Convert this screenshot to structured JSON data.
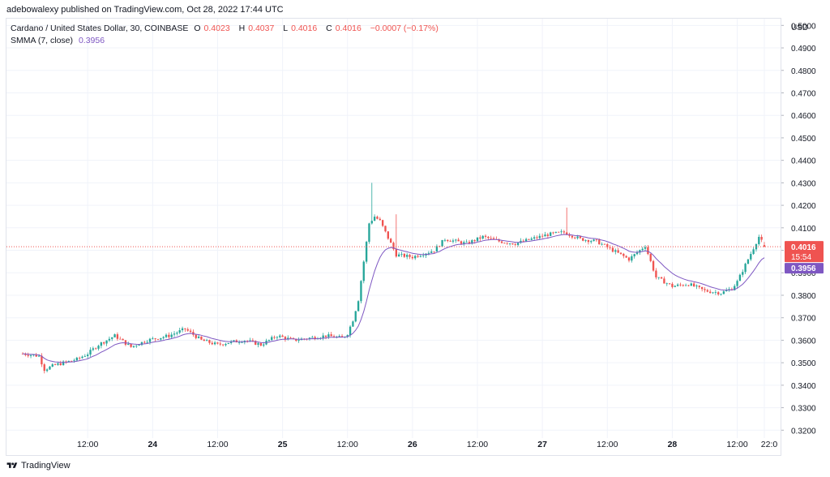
{
  "header": {
    "published": "adebowalexy published on TradingView.com, Oct 28, 2022 17:44 UTC"
  },
  "legend": {
    "symbol": "Cardano / United States Dollar, 30, COINBASE",
    "o_label": "O",
    "o_value": "0.4023",
    "h_label": "H",
    "h_value": "0.4037",
    "l_label": "L",
    "l_value": "0.4016",
    "c_label": "C",
    "c_value": "0.4016",
    "change": "−0.0007 (−0.17%)",
    "indicator": "SMMA (7, close)",
    "indicator_value": "0.3956"
  },
  "footer": {
    "brand": "TradingView"
  },
  "colors": {
    "up": "#26a69a",
    "down": "#ef5350",
    "sma": "#7e57c2",
    "grid": "#f0f3fa",
    "price_line": "#ef5350"
  },
  "chart_data": {
    "type": "candlestick",
    "currency": "USD",
    "y_ticks": [
      "0.5000",
      "0.4900",
      "0.4800",
      "0.4700",
      "0.4600",
      "0.4500",
      "0.4400",
      "0.4300",
      "0.4200",
      "0.4100",
      "0.4000",
      "0.3900",
      "0.3800",
      "0.3700",
      "0.3600",
      "0.3500",
      "0.3400",
      "0.3300",
      "0.3200"
    ],
    "ylim": [
      0.3165,
      0.503
    ],
    "x_ticks": [
      "12:00",
      "24",
      "12:00",
      "25",
      "12:00",
      "26",
      "12:00",
      "27",
      "12:00",
      "28",
      "12:00",
      "22:0"
    ],
    "x_ticks_time_index": [
      12,
      24,
      36,
      48,
      60,
      72,
      84,
      96,
      108,
      120,
      132,
      137
    ],
    "x_span_hours": [
      -3,
      140
    ],
    "last_price": {
      "value": 0.4016,
      "label": "0.4016",
      "countdown": "15:54"
    },
    "sma_last": {
      "value": 0.3956,
      "label": "0.3956"
    },
    "keypoints": [
      [
        0,
        0.354
      ],
      [
        3,
        0.353
      ],
      [
        4,
        0.347
      ],
      [
        6,
        0.349
      ],
      [
        10,
        0.3515
      ],
      [
        12,
        0.354
      ],
      [
        14,
        0.358
      ],
      [
        17,
        0.362
      ],
      [
        20,
        0.357
      ],
      [
        23,
        0.36
      ],
      [
        27,
        0.362
      ],
      [
        30,
        0.365
      ],
      [
        33,
        0.36
      ],
      [
        36,
        0.358
      ],
      [
        38,
        0.359
      ],
      [
        41,
        0.36
      ],
      [
        44,
        0.358
      ],
      [
        47,
        0.362
      ],
      [
        50,
        0.36
      ],
      [
        53,
        0.361
      ],
      [
        56,
        0.362
      ],
      [
        59,
        0.361
      ],
      [
        60,
        0.363
      ],
      [
        61,
        0.369
      ],
      [
        62,
        0.378
      ],
      [
        63,
        0.395
      ],
      [
        64,
        0.412
      ],
      [
        65,
        0.415
      ],
      [
        66,
        0.413
      ],
      [
        67,
        0.408
      ],
      [
        69,
        0.398
      ],
      [
        72,
        0.397
      ],
      [
        76,
        0.4
      ],
      [
        78,
        0.405
      ],
      [
        82,
        0.403
      ],
      [
        85,
        0.406
      ],
      [
        88,
        0.404
      ],
      [
        91,
        0.403
      ],
      [
        94,
        0.405
      ],
      [
        97,
        0.407
      ],
      [
        100,
        0.408
      ],
      [
        103,
        0.405
      ],
      [
        106,
        0.404
      ],
      [
        109,
        0.4
      ],
      [
        112,
        0.396
      ],
      [
        115,
        0.402
      ],
      [
        117,
        0.388
      ],
      [
        120,
        0.384
      ],
      [
        123,
        0.385
      ],
      [
        126,
        0.382
      ],
      [
        129,
        0.381
      ],
      [
        131,
        0.383
      ],
      [
        132,
        0.386
      ],
      [
        134,
        0.396
      ],
      [
        136,
        0.406
      ],
      [
        137,
        0.402
      ]
    ]
  }
}
